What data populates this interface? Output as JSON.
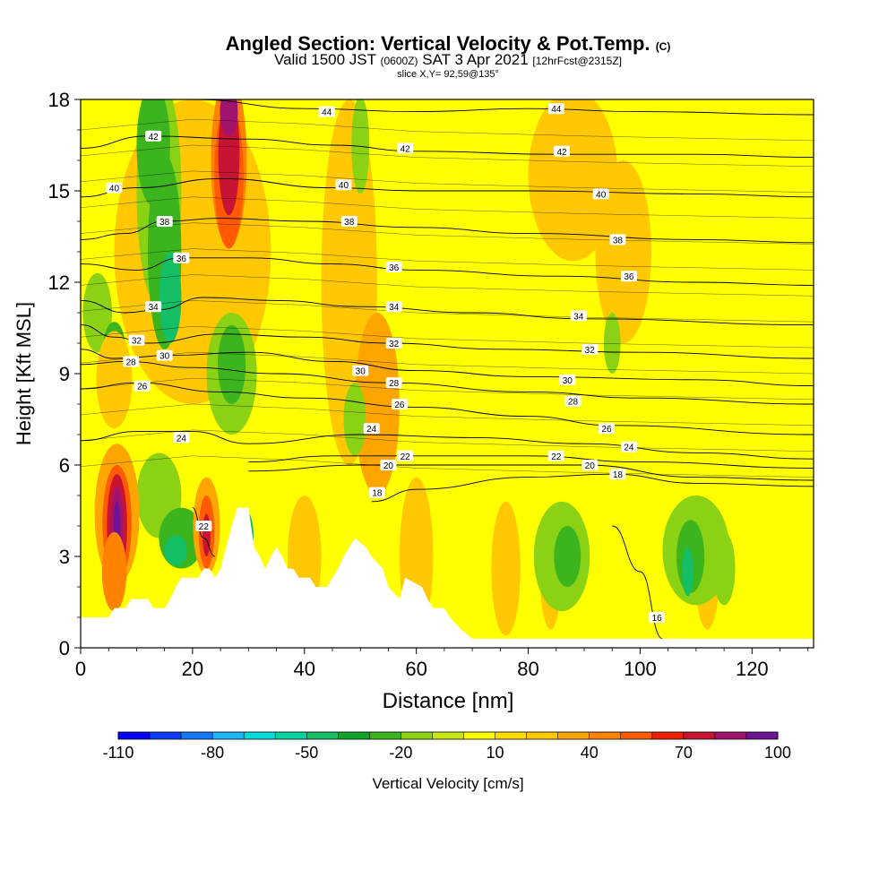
{
  "title": {
    "main": "Angled Section: Vertical Velocity & Pot.Temp.",
    "main_units": "(C)",
    "valid_prefix": "Valid 1500 JST",
    "valid_utc": "(0600Z)",
    "valid_date": "SAT 3 Apr 2021",
    "forecast": "[12hrFcst@2315Z]",
    "slice": "slice X,Y= 92,59@135°"
  },
  "chart_data": {
    "type": "heatmap",
    "xlabel": "Distance [nm]",
    "ylabel": "Height [Kft MSL]",
    "xlim": [
      0,
      131
    ],
    "ylim": [
      0,
      18
    ],
    "x_ticks": [
      0,
      20,
      40,
      60,
      80,
      100,
      120
    ],
    "y_ticks": [
      0,
      3,
      6,
      9,
      12,
      15,
      18
    ],
    "colorbar": {
      "label": "Vertical Velocity [cm/s]",
      "tick_labels": [
        "-110",
        "-80",
        "-50",
        "-20",
        "10",
        "40",
        "70",
        "100"
      ],
      "levels": [
        -110,
        -100,
        -90,
        -80,
        -70,
        -60,
        -50,
        -40,
        -30,
        -20,
        -10,
        0,
        10,
        20,
        30,
        40,
        50,
        60,
        70,
        80,
        90,
        100
      ],
      "colors": [
        "#0000ff",
        "#0a3cf8",
        "#1478ff",
        "#1eb4ff",
        "#00dcdc",
        "#00d2a0",
        "#14be64",
        "#0fa528",
        "#3cb41e",
        "#8cd214",
        "#c8e614",
        "#ffff00",
        "#ffdc00",
        "#ffc800",
        "#ffa500",
        "#ff8200",
        "#ff5a00",
        "#f01e00",
        "#c81432",
        "#a0146e",
        "#6e1496"
      ]
    },
    "shaded_field": "Vertical Velocity (cm/s)",
    "contour_field": "Potential Temperature (C)",
    "contours": [
      {
        "level": 44,
        "y_at_x": [
          [
            20,
            18.0
          ],
          [
            40,
            17.7
          ],
          [
            60,
            17.6
          ],
          [
            80,
            17.7
          ],
          [
            100,
            17.6
          ],
          [
            131,
            17.5
          ]
        ]
      },
      {
        "level": 42,
        "y_at_x": [
          [
            0,
            16.4
          ],
          [
            12,
            16.8
          ],
          [
            30,
            16.7
          ],
          [
            45,
            16.5
          ],
          [
            60,
            16.3
          ],
          [
            85,
            16.2
          ],
          [
            110,
            16.2
          ],
          [
            131,
            16.1
          ]
        ]
      },
      {
        "level": 40,
        "y_at_x": [
          [
            0,
            14.8
          ],
          [
            10,
            15.1
          ],
          [
            25,
            15.4
          ],
          [
            45,
            15.1
          ],
          [
            60,
            15.0
          ],
          [
            80,
            15.0
          ],
          [
            110,
            14.9
          ],
          [
            131,
            14.8
          ]
        ]
      },
      {
        "level": 38,
        "y_at_x": [
          [
            0,
            13.4
          ],
          [
            8,
            13.6
          ],
          [
            15,
            14.0
          ],
          [
            25,
            14.1
          ],
          [
            40,
            14.0
          ],
          [
            60,
            13.8
          ],
          [
            80,
            13.6
          ],
          [
            110,
            13.4
          ],
          [
            131,
            13.3
          ]
        ]
      },
      {
        "level": 36,
        "y_at_x": [
          [
            0,
            12.6
          ],
          [
            10,
            12.4
          ],
          [
            18,
            12.8
          ],
          [
            30,
            12.8
          ],
          [
            45,
            12.6
          ],
          [
            60,
            12.4
          ],
          [
            85,
            12.2
          ],
          [
            110,
            12.0
          ],
          [
            131,
            11.9
          ]
        ]
      },
      {
        "level": 34,
        "y_at_x": [
          [
            0,
            11.4
          ],
          [
            8,
            11.0
          ],
          [
            14,
            11.1
          ],
          [
            22,
            11.5
          ],
          [
            35,
            11.4
          ],
          [
            50,
            11.2
          ],
          [
            70,
            11.0
          ],
          [
            90,
            10.8
          ],
          [
            131,
            10.6
          ]
        ]
      },
      {
        "level": 32,
        "y_at_x": [
          [
            0,
            10.6
          ],
          [
            6,
            10.2
          ],
          [
            12,
            10.0
          ],
          [
            25,
            10.3
          ],
          [
            40,
            10.2
          ],
          [
            55,
            10.0
          ],
          [
            75,
            9.8
          ],
          [
            100,
            9.7
          ],
          [
            131,
            9.5
          ]
        ]
      },
      {
        "level": 30,
        "y_at_x": [
          [
            0,
            9.8
          ],
          [
            6,
            9.5
          ],
          [
            16,
            9.6
          ],
          [
            30,
            9.7
          ],
          [
            45,
            9.4
          ],
          [
            60,
            9.1
          ],
          [
            80,
            8.9
          ],
          [
            110,
            8.8
          ],
          [
            131,
            8.6
          ]
        ]
      },
      {
        "level": 28,
        "y_at_x": [
          [
            0,
            9.3
          ],
          [
            8,
            9.4
          ],
          [
            20,
            9.2
          ],
          [
            35,
            9.0
          ],
          [
            55,
            8.7
          ],
          [
            80,
            8.4
          ],
          [
            100,
            8.2
          ],
          [
            131,
            8.0
          ]
        ]
      },
      {
        "level": 26,
        "y_at_x": [
          [
            0,
            8.5
          ],
          [
            10,
            8.7
          ],
          [
            25,
            8.4
          ],
          [
            40,
            8.2
          ],
          [
            60,
            7.9
          ],
          [
            80,
            7.6
          ],
          [
            95,
            7.3
          ],
          [
            131,
            7.0
          ]
        ]
      },
      {
        "level": 24,
        "y_at_x": [
          [
            0,
            6.8
          ],
          [
            10,
            7.1
          ],
          [
            20,
            7.1
          ],
          [
            30,
            6.7
          ],
          [
            50,
            7.0
          ],
          [
            70,
            6.9
          ],
          [
            90,
            6.7
          ],
          [
            110,
            6.4
          ],
          [
            131,
            6.2
          ]
        ]
      },
      {
        "level": 22,
        "y_at_x": [
          [
            30,
            6.1
          ],
          [
            45,
            6.3
          ],
          [
            60,
            6.3
          ],
          [
            80,
            6.3
          ],
          [
            100,
            6.1
          ],
          [
            131,
            5.9
          ]
        ]
      },
      {
        "level": 20,
        "y_at_x": [
          [
            30,
            5.8
          ],
          [
            50,
            6.0
          ],
          [
            70,
            6.0
          ],
          [
            90,
            6.0
          ],
          [
            110,
            5.6
          ],
          [
            131,
            5.5
          ]
        ]
      },
      {
        "level": 18,
        "y_at_x": [
          [
            52,
            4.8
          ],
          [
            60,
            5.2
          ],
          [
            80,
            5.6
          ],
          [
            95,
            5.7
          ],
          [
            110,
            5.4
          ],
          [
            131,
            5.3
          ]
        ]
      },
      {
        "level": 16,
        "y_at_x": [
          [
            95,
            4.0
          ],
          [
            100,
            2.5
          ],
          [
            104,
            0.3
          ]
        ]
      },
      {
        "level": 22,
        "y_at_x": [
          [
            20,
            4.6
          ],
          [
            22,
            3.6
          ],
          [
            24,
            3.0
          ]
        ]
      }
    ],
    "contour_labels": [
      {
        "text": "44",
        "x": 44,
        "y": 17.6
      },
      {
        "text": "44",
        "x": 85,
        "y": 17.7
      },
      {
        "text": "42",
        "x": 13,
        "y": 16.8
      },
      {
        "text": "42",
        "x": 58,
        "y": 16.4
      },
      {
        "text": "42",
        "x": 86,
        "y": 16.3
      },
      {
        "text": "40",
        "x": 6,
        "y": 15.1
      },
      {
        "text": "40",
        "x": 47,
        "y": 15.2
      },
      {
        "text": "40",
        "x": 93,
        "y": 14.9
      },
      {
        "text": "38",
        "x": 15,
        "y": 14.0
      },
      {
        "text": "38",
        "x": 48,
        "y": 14.0
      },
      {
        "text": "38",
        "x": 96,
        "y": 13.4
      },
      {
        "text": "36",
        "x": 18,
        "y": 12.8
      },
      {
        "text": "36",
        "x": 56,
        "y": 12.5
      },
      {
        "text": "36",
        "x": 98,
        "y": 12.2
      },
      {
        "text": "34",
        "x": 13,
        "y": 11.2
      },
      {
        "text": "34",
        "x": 56,
        "y": 11.2
      },
      {
        "text": "34",
        "x": 89,
        "y": 10.9
      },
      {
        "text": "32",
        "x": 10,
        "y": 10.1
      },
      {
        "text": "32",
        "x": 56,
        "y": 10.0
      },
      {
        "text": "32",
        "x": 91,
        "y": 9.8
      },
      {
        "text": "30",
        "x": 15,
        "y": 9.6
      },
      {
        "text": "30",
        "x": 50,
        "y": 9.1
      },
      {
        "text": "30",
        "x": 87,
        "y": 8.8
      },
      {
        "text": "28",
        "x": 9,
        "y": 9.4
      },
      {
        "text": "28",
        "x": 56,
        "y": 8.7
      },
      {
        "text": "28",
        "x": 88,
        "y": 8.1
      },
      {
        "text": "26",
        "x": 11,
        "y": 8.6
      },
      {
        "text": "26",
        "x": 57,
        "y": 8.0
      },
      {
        "text": "26",
        "x": 94,
        "y": 7.2
      },
      {
        "text": "24",
        "x": 18,
        "y": 6.9
      },
      {
        "text": "24",
        "x": 52,
        "y": 7.2
      },
      {
        "text": "24",
        "x": 98,
        "y": 6.6
      },
      {
        "text": "22",
        "x": 58,
        "y": 6.3
      },
      {
        "text": "22",
        "x": 85,
        "y": 6.3
      },
      {
        "text": "20",
        "x": 55,
        "y": 6.0
      },
      {
        "text": "20",
        "x": 91,
        "y": 6.0
      },
      {
        "text": "18",
        "x": 53,
        "y": 5.1
      },
      {
        "text": "18",
        "x": 96,
        "y": 5.7
      },
      {
        "text": "22",
        "x": 22,
        "y": 4.0
      },
      {
        "text": "16",
        "x": 103,
        "y": 1.0
      }
    ],
    "features": [
      {
        "type": "updraft",
        "x": 6.5,
        "y": 4.0,
        "peak": 100
      },
      {
        "type": "updraft",
        "x": 26.5,
        "y": 16.0,
        "peak": 70
      },
      {
        "type": "updraft",
        "x": 22.5,
        "y": 3.8,
        "peak": 70
      },
      {
        "type": "downdraft",
        "x": 14.5,
        "y": 15.0,
        "peak": -45
      },
      {
        "type": "downdraft",
        "x": 30,
        "y": 3.3,
        "peak": -80
      }
    ],
    "terrain_top_kft": [
      [
        0,
        1.0
      ],
      [
        5,
        1.0
      ],
      [
        6,
        1.3
      ],
      [
        8,
        1.3
      ],
      [
        9,
        1.6
      ],
      [
        12,
        1.6
      ],
      [
        13,
        1.3
      ],
      [
        15,
        1.3
      ],
      [
        16,
        1.6
      ],
      [
        17,
        2.0
      ],
      [
        18,
        2.3
      ],
      [
        21,
        2.3
      ],
      [
        22,
        2.6
      ],
      [
        23,
        2.6
      ],
      [
        24,
        2.3
      ],
      [
        25,
        2.6
      ],
      [
        26,
        3.3
      ],
      [
        27,
        4.0
      ],
      [
        28,
        4.6
      ],
      [
        30,
        4.6
      ],
      [
        31,
        3.3
      ],
      [
        32,
        3.0
      ],
      [
        33,
        2.6
      ],
      [
        34,
        3.0
      ],
      [
        35,
        3.3
      ],
      [
        36,
        3.0
      ],
      [
        37,
        2.6
      ],
      [
        38,
        2.6
      ],
      [
        39,
        2.3
      ],
      [
        41,
        2.3
      ],
      [
        42,
        2.0
      ],
      [
        44,
        2.0
      ],
      [
        45,
        2.3
      ],
      [
        46,
        2.6
      ],
      [
        47,
        3.0
      ],
      [
        49,
        3.6
      ],
      [
        51,
        3.3
      ],
      [
        52,
        3.0
      ],
      [
        54,
        2.6
      ],
      [
        55,
        2.0
      ],
      [
        57,
        1.6
      ],
      [
        58,
        2.3
      ],
      [
        61,
        2.0
      ],
      [
        62,
        1.6
      ],
      [
        63,
        1.3
      ],
      [
        65,
        1.3
      ],
      [
        66,
        1.0
      ],
      [
        68,
        0.6
      ],
      [
        70,
        0.3
      ],
      [
        131,
        0.3
      ]
    ]
  }
}
